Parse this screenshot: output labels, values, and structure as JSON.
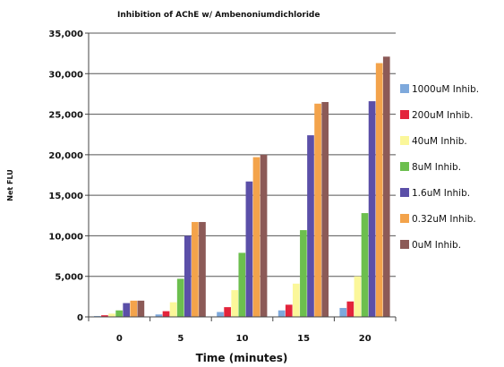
{
  "chart_data": {
    "type": "bar",
    "title": "Inhibition of AChE w/ Ambenoniumdichloride",
    "xlabel": "Time (minutes)",
    "ylabel": "Net FLU",
    "categories": [
      "0",
      "5",
      "10",
      "15",
      "20"
    ],
    "ylim": [
      0,
      35000
    ],
    "yticks": [
      0,
      5000,
      10000,
      15000,
      20000,
      25000,
      30000,
      35000
    ],
    "ytick_labels": [
      "0",
      "5,000",
      "10,000",
      "15,000",
      "20,000",
      "25,000",
      "30,000",
      "35,000"
    ],
    "grid": true,
    "legend_position": "right",
    "series": [
      {
        "name": "1000uM Inhib.",
        "color": "#7ea9dc",
        "values": [
          100,
          300,
          600,
          800,
          1100
        ]
      },
      {
        "name": "200uM Inhib.",
        "color": "#e3243b",
        "values": [
          200,
          700,
          1200,
          1500,
          1900
        ]
      },
      {
        "name": "40uM Inhib.",
        "color": "#fbf79a",
        "values": [
          400,
          1800,
          3300,
          4100,
          5000
        ]
      },
      {
        "name": "8uM Inhib.",
        "color": "#6cbf4e",
        "values": [
          800,
          4700,
          7900,
          10700,
          12800
        ]
      },
      {
        "name": "1.6uM Inhib.",
        "color": "#5b4fa8",
        "values": [
          1700,
          10000,
          16700,
          22400,
          26600
        ]
      },
      {
        "name": "0.32uM Inhib.",
        "color": "#f3a34b",
        "values": [
          2000,
          11700,
          19700,
          26300,
          31300
        ]
      },
      {
        "name": "0uM Inhib.",
        "color": "#8c5a57",
        "values": [
          2000,
          11700,
          20000,
          26500,
          32100
        ]
      }
    ]
  }
}
